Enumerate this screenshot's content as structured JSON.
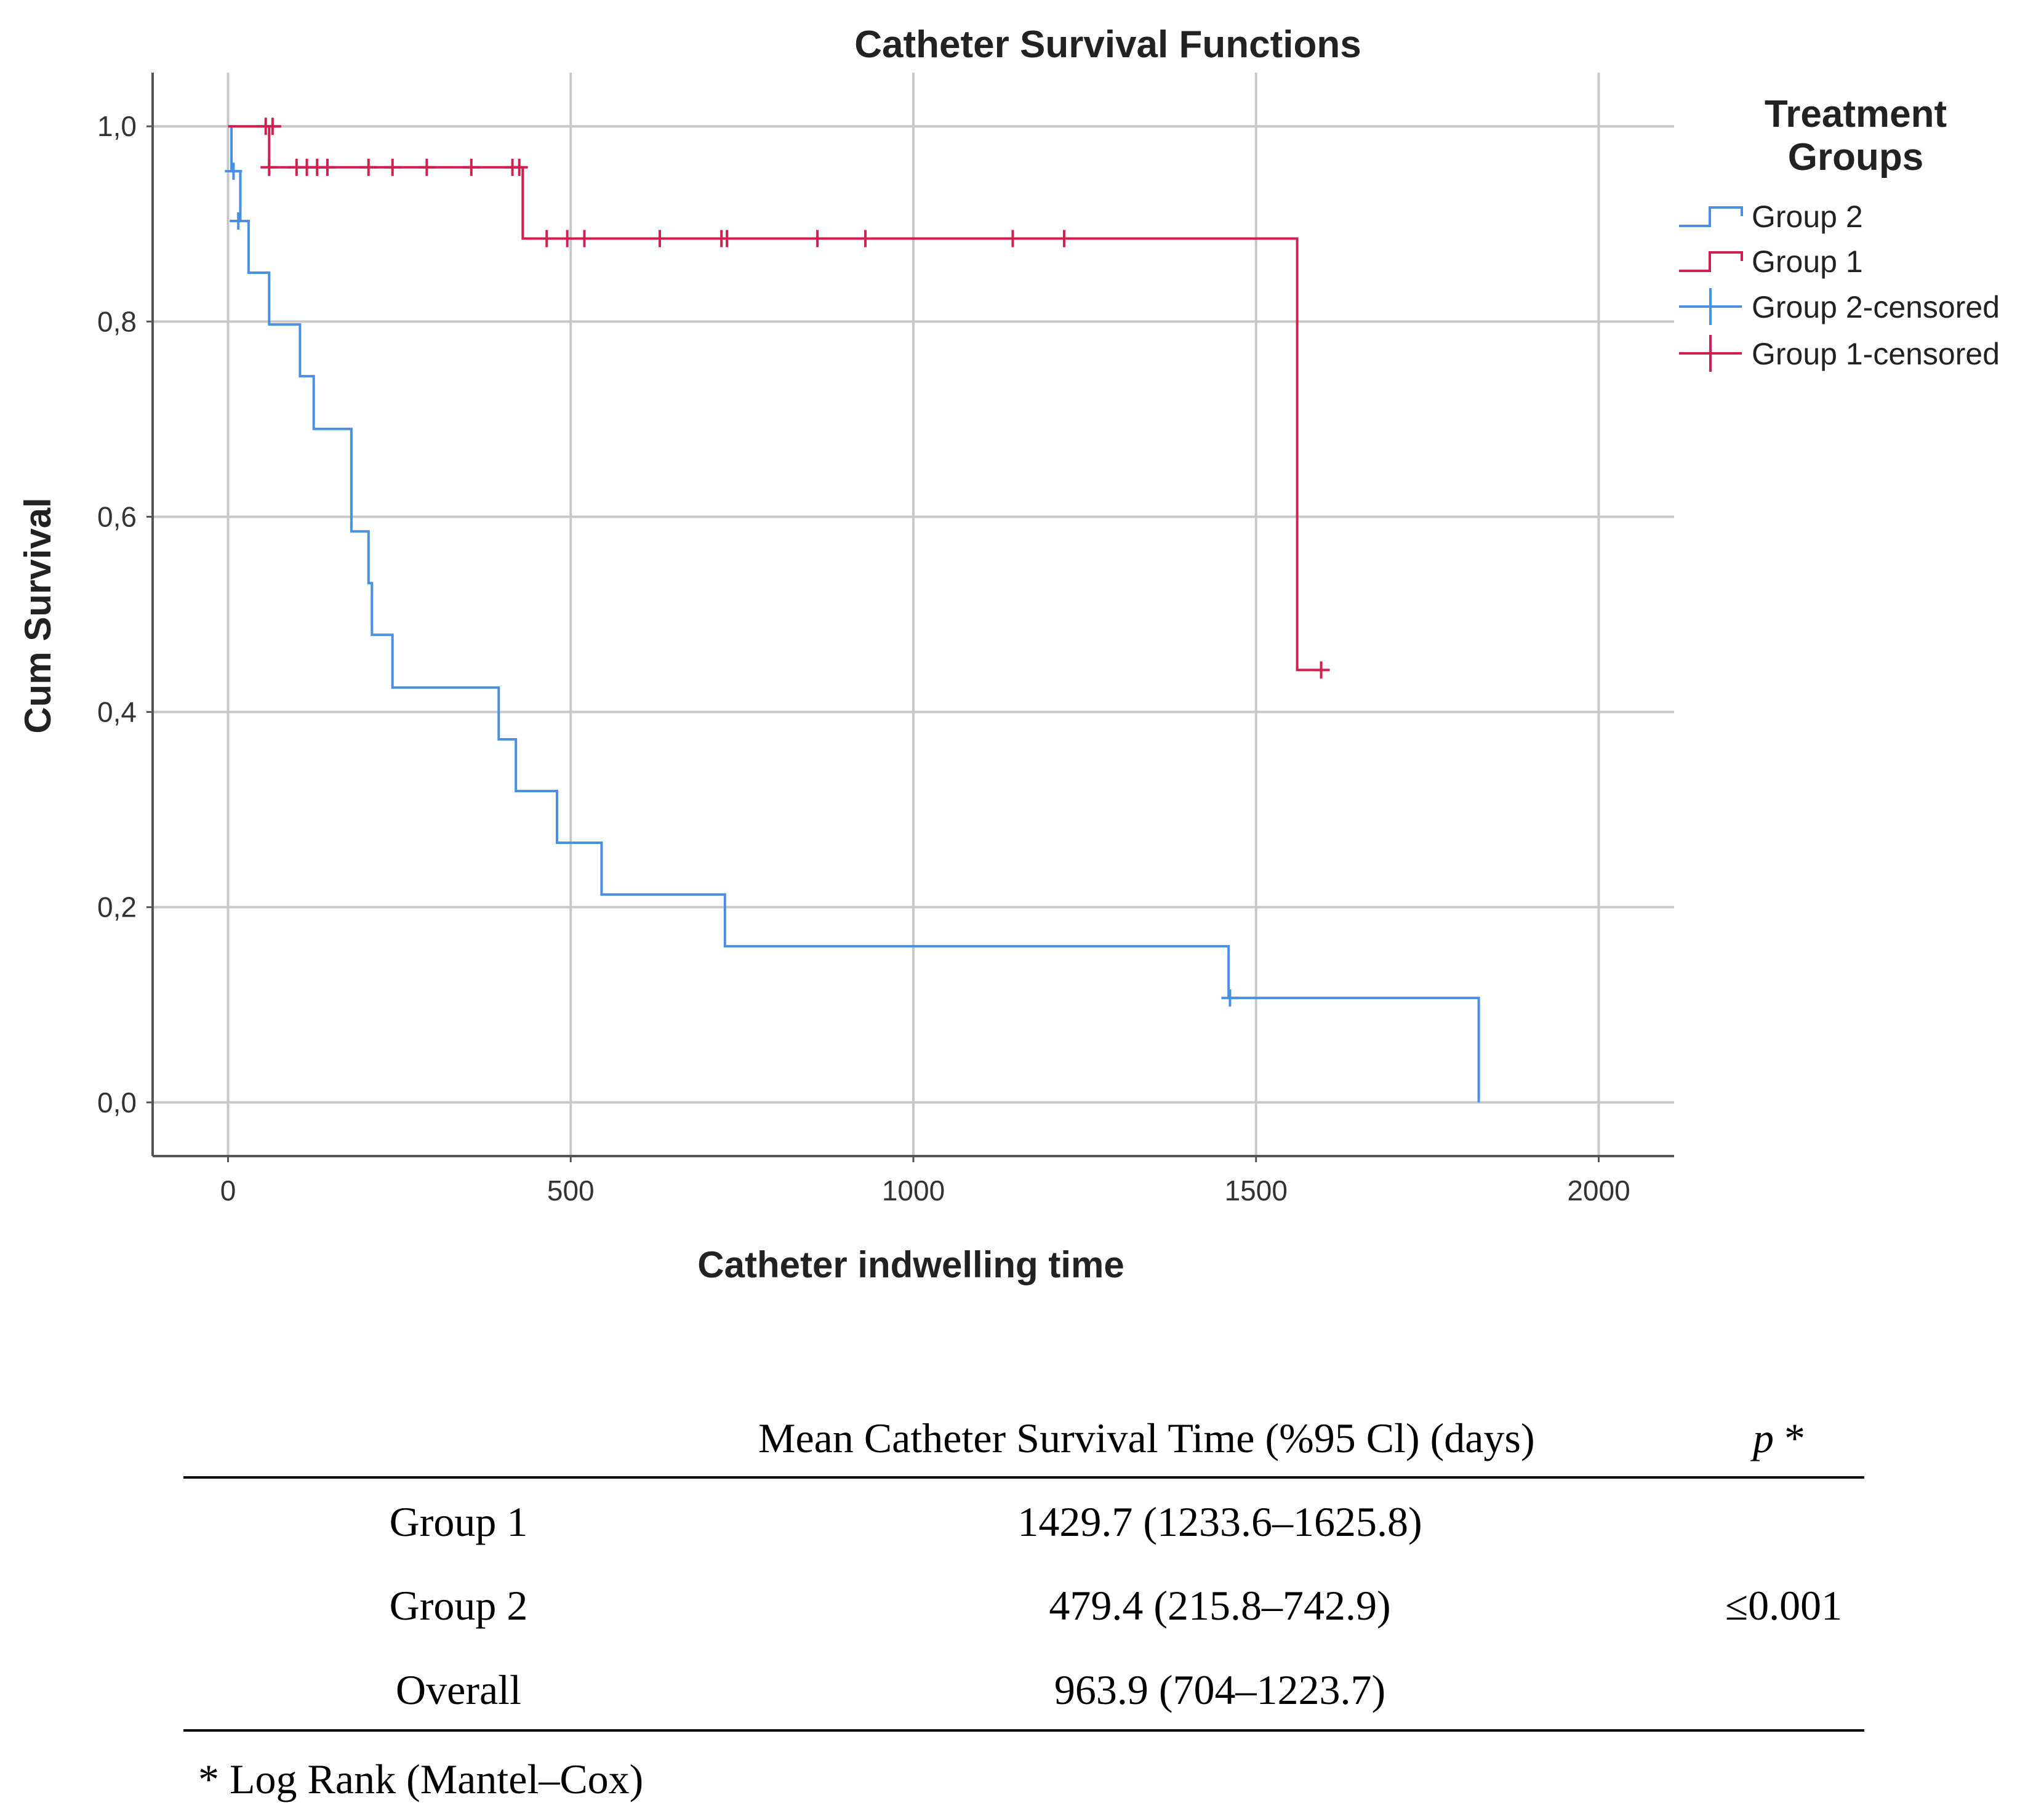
{
  "chart_data": {
    "type": "line",
    "title": "Catheter Survival Functions",
    "xlabel": "Catheter indwelling time",
    "ylabel": "Cum Survival",
    "xlim": [
      -110,
      2110
    ],
    "ylim": [
      -0.055,
      1.055
    ],
    "x_ticks": [
      0,
      500,
      1000,
      1500,
      2000
    ],
    "x_tick_labels": [
      "0",
      "500",
      "1000",
      "1500",
      "2000"
    ],
    "y_ticks": [
      0.0,
      0.2,
      0.4,
      0.6,
      0.8,
      1.0
    ],
    "y_tick_labels": [
      "0,0",
      "0,2",
      "0,4",
      "0,6",
      "0,8",
      "1,0"
    ],
    "grid": true,
    "legend": {
      "title_line1": "Treatment",
      "title_line2": "Groups",
      "placement": "right",
      "entries": [
        "Group 2",
        "Group 1",
        "Group 2-censored",
        "Group 1-censored"
      ]
    },
    "colors": {
      "group2": "#4a90e2",
      "group1": "#d11f4f",
      "grid": "#c8c8c8",
      "axis": "#555555"
    },
    "series": [
      {
        "name": "Group 2",
        "style": "step",
        "points": [
          [
            0,
            1.0
          ],
          [
            5,
            1.0
          ],
          [
            5,
            0.954
          ],
          [
            18,
            0.954
          ],
          [
            18,
            0.903
          ],
          [
            30,
            0.903
          ],
          [
            30,
            0.85
          ],
          [
            60,
            0.85
          ],
          [
            60,
            0.797
          ],
          [
            105,
            0.797
          ],
          [
            105,
            0.744
          ],
          [
            125,
            0.744
          ],
          [
            125,
            0.69
          ],
          [
            180,
            0.69
          ],
          [
            180,
            0.585
          ],
          [
            205,
            0.585
          ],
          [
            205,
            0.532
          ],
          [
            210,
            0.532
          ],
          [
            210,
            0.479
          ],
          [
            240,
            0.479
          ],
          [
            240,
            0.425
          ],
          [
            395,
            0.425
          ],
          [
            395,
            0.372
          ],
          [
            420,
            0.372
          ],
          [
            420,
            0.319
          ],
          [
            480,
            0.319
          ],
          [
            480,
            0.266
          ],
          [
            545,
            0.266
          ],
          [
            545,
            0.213
          ],
          [
            725,
            0.213
          ],
          [
            725,
            0.16
          ],
          [
            1460,
            0.16
          ],
          [
            1460,
            0.107
          ],
          [
            1825,
            0.107
          ],
          [
            1825,
            0.0
          ]
        ],
        "censored": [
          [
            8,
            0.954
          ],
          [
            15,
            0.903
          ],
          [
            1462,
            0.107
          ]
        ]
      },
      {
        "name": "Group 1",
        "style": "step",
        "points": [
          [
            0,
            1.0
          ],
          [
            60,
            1.0
          ],
          [
            60,
            0.958
          ],
          [
            430,
            0.958
          ],
          [
            430,
            0.885
          ],
          [
            1560,
            0.885
          ],
          [
            1560,
            0.443
          ],
          [
            1595,
            0.443
          ]
        ],
        "censored": [
          [
            55,
            1.0
          ],
          [
            65,
            1.0
          ],
          [
            60,
            0.958
          ],
          [
            100,
            0.958
          ],
          [
            115,
            0.958
          ],
          [
            130,
            0.958
          ],
          [
            145,
            0.958
          ],
          [
            205,
            0.958
          ],
          [
            240,
            0.958
          ],
          [
            290,
            0.958
          ],
          [
            355,
            0.958
          ],
          [
            415,
            0.958
          ],
          [
            425,
            0.958
          ],
          [
            465,
            0.885
          ],
          [
            495,
            0.885
          ],
          [
            520,
            0.885
          ],
          [
            630,
            0.885
          ],
          [
            720,
            0.885
          ],
          [
            728,
            0.885
          ],
          [
            860,
            0.885
          ],
          [
            930,
            0.885
          ],
          [
            1145,
            0.885
          ],
          [
            1220,
            0.885
          ],
          [
            1595,
            0.443
          ]
        ]
      }
    ]
  },
  "table": {
    "header_col2": "Mean Catheter Survival Time (%95 Cl) (days)",
    "header_p": "p",
    "header_p_suffix": " *",
    "rows": [
      {
        "group": "Group 1",
        "value": "1429.7 (1233.6–1625.8)"
      },
      {
        "group": "Group 2",
        "value": "479.4 (215.8–742.9)"
      },
      {
        "group": "Overall",
        "value": "963.9 (704–1223.7)"
      }
    ],
    "p_value": "≤0.001",
    "footnote": "* Log Rank (Mantel–Cox)"
  }
}
